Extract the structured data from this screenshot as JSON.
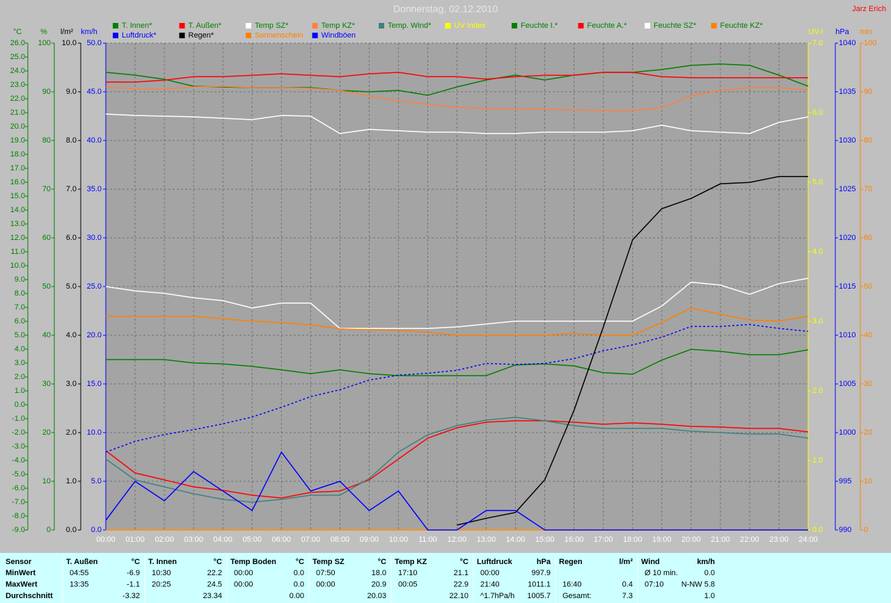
{
  "chart_data": {
    "type": "line",
    "title": "Donnerstag, 02.12.2010",
    "author": "Jarz Erich",
    "x": [
      0,
      1,
      2,
      3,
      4,
      5,
      6,
      7,
      8,
      9,
      10,
      11,
      12,
      13,
      14,
      15,
      16,
      17,
      18,
      19,
      20,
      21,
      22,
      23,
      24
    ],
    "xlim": [
      0,
      24
    ],
    "xticks": [
      {
        "value": 0,
        "label": "00:00"
      },
      {
        "value": 1,
        "label": "01:00"
      },
      {
        "value": 2,
        "label": "02:00"
      },
      {
        "value": 3,
        "label": "03:00"
      },
      {
        "value": 4,
        "label": "04:00"
      },
      {
        "value": 5,
        "label": "05:00"
      },
      {
        "value": 6,
        "label": "06:00"
      },
      {
        "value": 7,
        "label": "07:00"
      },
      {
        "value": 8,
        "label": "08:00"
      },
      {
        "value": 9,
        "label": "09:00"
      },
      {
        "value": 10,
        "label": "10:00"
      },
      {
        "value": 11,
        "label": "11:00"
      },
      {
        "value": 12,
        "label": "12:00"
      },
      {
        "value": 13,
        "label": "13:00"
      },
      {
        "value": 14,
        "label": "14:00"
      },
      {
        "value": 15,
        "label": "15:00"
      },
      {
        "value": 16,
        "label": "16:00"
      },
      {
        "value": 17,
        "label": "17:00"
      },
      {
        "value": 18,
        "label": "18:00"
      },
      {
        "value": 19,
        "label": "19:00"
      },
      {
        "value": 20,
        "label": "20:00"
      },
      {
        "value": 21,
        "label": "21:00"
      },
      {
        "value": 22,
        "label": "22:00"
      },
      {
        "value": 23,
        "label": "23:00"
      },
      {
        "value": 24,
        "label": "24:00"
      }
    ],
    "grid": true,
    "axes": [
      {
        "label": "°C",
        "color": "#008000",
        "ylim": [
          -9,
          26
        ],
        "yticks": [
          {
            "value": -9,
            "label": "-9.0"
          },
          {
            "value": -8,
            "label": "-8.0"
          },
          {
            "value": -7,
            "label": "-7.0"
          },
          {
            "value": -6,
            "label": "-6.0"
          },
          {
            "value": -5,
            "label": "-5.0"
          },
          {
            "value": -4,
            "label": "-4.0"
          },
          {
            "value": -3,
            "label": "-3.0"
          },
          {
            "value": -2,
            "label": "-2.0"
          },
          {
            "value": -1,
            "label": "-1.0"
          },
          {
            "value": 0,
            "label": "0.0"
          },
          {
            "value": 1,
            "label": "1.0"
          },
          {
            "value": 2,
            "label": "2.0"
          },
          {
            "value": 3,
            "label": "3.0"
          },
          {
            "value": 4,
            "label": "4.0"
          },
          {
            "value": 5,
            "label": "5.0"
          },
          {
            "value": 6,
            "label": "6.0"
          },
          {
            "value": 7,
            "label": "7.0"
          },
          {
            "value": 8,
            "label": "8.0"
          },
          {
            "value": 9,
            "label": "9.0"
          },
          {
            "value": 10,
            "label": "10.0"
          },
          {
            "value": 11,
            "label": "11.0"
          },
          {
            "value": 12,
            "label": "12.0"
          },
          {
            "value": 13,
            "label": "13.0"
          },
          {
            "value": 14,
            "label": "14.0"
          },
          {
            "value": 15,
            "label": "15.0"
          },
          {
            "value": 16,
            "label": "16.0"
          },
          {
            "value": 17,
            "label": "17.0"
          },
          {
            "value": 18,
            "label": "18.0"
          },
          {
            "value": 19,
            "label": "19.0"
          },
          {
            "value": 20,
            "label": "20.0"
          },
          {
            "value": 21,
            "label": "21.0"
          },
          {
            "value": 22,
            "label": "22.0"
          },
          {
            "value": 23,
            "label": "23.0"
          },
          {
            "value": 24,
            "label": "24.0"
          },
          {
            "value": 25,
            "label": "25.0"
          },
          {
            "value": 26,
            "label": "26.0"
          }
        ]
      },
      {
        "label": "%",
        "color": "#008000",
        "ylim": [
          0,
          100
        ],
        "yticks": [
          0,
          10,
          20,
          30,
          40,
          50,
          60,
          70,
          80,
          90,
          100
        ]
      },
      {
        "label": "l/m²",
        "color": "#000000",
        "ylim": [
          0,
          10
        ],
        "yticks": [
          {
            "value": 0,
            "label": "0.0"
          },
          {
            "value": 1,
            "label": "1.0"
          },
          {
            "value": 2,
            "label": "2.0"
          },
          {
            "value": 3,
            "label": "3.0"
          },
          {
            "value": 4,
            "label": "4.0"
          },
          {
            "value": 5,
            "label": "5.0"
          },
          {
            "value": 6,
            "label": "6.0"
          },
          {
            "value": 7,
            "label": "7.0"
          },
          {
            "value": 8,
            "label": "8.0"
          },
          {
            "value": 9,
            "label": "9.0"
          },
          {
            "value": 10,
            "label": "10.0"
          }
        ]
      },
      {
        "label": "km/h",
        "color": "#0000ff",
        "grid": true,
        "ylim": [
          0,
          50
        ],
        "yticks": [
          {
            "value": 0,
            "label": "0.0"
          },
          {
            "value": 5,
            "label": "5.0"
          },
          {
            "value": 10,
            "label": "10.0"
          },
          {
            "value": 15,
            "label": "15.0"
          },
          {
            "value": 20,
            "label": "20.0"
          },
          {
            "value": 25,
            "label": "25.0"
          },
          {
            "value": 30,
            "label": "30.0"
          },
          {
            "value": 35,
            "label": "35.0"
          },
          {
            "value": 40,
            "label": "40.0"
          },
          {
            "value": 45,
            "label": "45.0"
          },
          {
            "value": 50,
            "label": "50.0"
          }
        ]
      },
      {
        "label": "UV-I",
        "color": "#ffff00",
        "ylim": [
          0,
          7
        ],
        "yticks": [
          {
            "value": 0,
            "label": "0.0"
          },
          {
            "value": 1,
            "label": "1.0"
          },
          {
            "value": 2,
            "label": "2.0"
          },
          {
            "value": 3,
            "label": "3.0"
          },
          {
            "value": 4,
            "label": "4.0"
          },
          {
            "value": 5,
            "label": "5.0"
          },
          {
            "value": 6,
            "label": "6.0"
          },
          {
            "value": 7,
            "label": "7.0"
          }
        ]
      },
      {
        "label": "hPa",
        "color": "#0000ff",
        "ylim": [
          990,
          1040
        ],
        "yticks": [
          990,
          995,
          1000,
          1005,
          1010,
          1015,
          1020,
          1025,
          1030,
          1035,
          1040
        ]
      },
      {
        "label": "min",
        "color": "#ff8000",
        "ylim": [
          0,
          100
        ],
        "yticks": [
          0,
          10,
          20,
          30,
          40,
          50,
          60,
          70,
          80,
          90,
          100
        ]
      }
    ],
    "series": [
      {
        "name": "T. Innen*",
        "color": "#008000",
        "axis": 0,
        "values": [
          23.9,
          23.7,
          23.4,
          22.9,
          22.85,
          22.8,
          22.8,
          22.8,
          22.6,
          22.5,
          22.6,
          22.25,
          22.85,
          23.35,
          23.7,
          23.35,
          23.7,
          23.9,
          23.9,
          24.1,
          24.4,
          24.5,
          24.4,
          23.7,
          22.9
        ]
      },
      {
        "name": "T. Außen*",
        "color": "#ff0000",
        "axis": 0,
        "values": [
          -3.3,
          -4.9,
          -5.4,
          -5.9,
          -6.15,
          -6.5,
          -6.7,
          -6.3,
          -6.2,
          -5.4,
          -3.9,
          -2.4,
          -1.65,
          -1.25,
          -1.15,
          -1.15,
          -1.25,
          -1.4,
          -1.3,
          -1.4,
          -1.55,
          -1.6,
          -1.7,
          -1.7,
          -1.95
        ]
      },
      {
        "name": "Temp SZ*",
        "color": "#ffffff",
        "axis": 0,
        "values": [
          20.9,
          20.8,
          20.75,
          20.7,
          20.6,
          20.5,
          20.8,
          20.75,
          19.5,
          19.8,
          19.7,
          19.6,
          19.6,
          19.5,
          19.5,
          19.6,
          19.6,
          19.6,
          19.7,
          20.1,
          19.7,
          19.6,
          19.5,
          20.3,
          20.7
        ]
      },
      {
        "name": "Temp KZ*",
        "color": "#ff8040",
        "axis": 0,
        "values": [
          22.85,
          22.7,
          22.7,
          22.85,
          22.9,
          22.8,
          22.8,
          22.75,
          22.6,
          22.2,
          21.85,
          21.6,
          21.4,
          21.3,
          21.3,
          21.25,
          21.2,
          21.15,
          21.15,
          21.35,
          22.2,
          22.6,
          22.8,
          22.8,
          22.65
        ]
      },
      {
        "name": "Temp. Wind*",
        "color": "#408080",
        "axis": 0,
        "values": [
          -3.9,
          -5.4,
          -5.9,
          -6.4,
          -6.8,
          -7.0,
          -6.8,
          -6.5,
          -6.5,
          -5.3,
          -3.4,
          -2.15,
          -1.5,
          -1.1,
          -0.9,
          -1.15,
          -1.5,
          -1.7,
          -1.7,
          -1.7,
          -1.9,
          -2.0,
          -2.1,
          -2.1,
          -2.4
        ]
      },
      {
        "name": "UV Index",
        "color": "#ffff00",
        "axis": 4,
        "values": [
          0,
          0,
          0,
          0,
          0,
          0,
          0,
          0,
          0,
          0,
          0,
          0,
          0,
          0,
          0,
          0,
          0,
          0,
          0,
          0,
          0,
          0,
          0,
          0,
          0
        ]
      },
      {
        "name": "Feuchte I.*",
        "color": "#008000",
        "axis": 1,
        "values": [
          35.0,
          35.0,
          35.0,
          34.3,
          34.1,
          33.6,
          32.9,
          32.1,
          32.9,
          32.1,
          31.7,
          31.7,
          31.7,
          31.7,
          33.9,
          34.1,
          33.7,
          32.3,
          32.0,
          34.9,
          37.1,
          36.7,
          36.0,
          36.0,
          37.0
        ]
      },
      {
        "name": "Feuchte A.*",
        "color": "#ff0000",
        "axis": 1,
        "values": [
          92.0,
          92.0,
          92.4,
          93.1,
          93.1,
          93.4,
          93.7,
          93.4,
          93.1,
          93.7,
          94.0,
          93.1,
          93.1,
          92.6,
          93.1,
          93.4,
          93.4,
          94.0,
          94.0,
          93.1,
          92.9,
          92.9,
          92.9,
          92.9,
          92.9
        ]
      },
      {
        "name": "Feuchte SZ*",
        "color": "#ffffff",
        "axis": 1,
        "values": [
          50.0,
          49.1,
          48.6,
          47.7,
          47.1,
          45.6,
          46.6,
          46.6,
          41.4,
          41.4,
          41.4,
          41.4,
          41.7,
          42.3,
          42.9,
          42.9,
          42.9,
          42.9,
          42.9,
          46.0,
          50.9,
          50.3,
          48.4,
          50.6,
          51.7
        ]
      },
      {
        "name": "Feuchte KZ*",
        "color": "#ff8000",
        "axis": 1,
        "values": [
          43.9,
          43.9,
          43.9,
          43.9,
          43.4,
          42.9,
          42.6,
          42.1,
          41.3,
          41.1,
          41.0,
          40.6,
          40.0,
          40.0,
          40.0,
          40.0,
          40.4,
          40.0,
          40.0,
          42.6,
          45.6,
          44.3,
          43.1,
          42.9,
          43.9
        ]
      },
      {
        "name": "Luftdruck*",
        "color": "#0000ff",
        "axis": 5,
        "dashed": true,
        "values": [
          998.0,
          999.1,
          999.8,
          1000.3,
          1000.9,
          1001.6,
          1002.6,
          1003.7,
          1004.4,
          1005.4,
          1005.9,
          1006.1,
          1006.4,
          1007.1,
          1007.0,
          1007.1,
          1007.6,
          1008.4,
          1009.0,
          1009.8,
          1010.9,
          1010.9,
          1011.1,
          1010.7,
          1010.4
        ]
      },
      {
        "name": "Regen*",
        "color": "#000000",
        "axis": 2,
        "values": [
          null,
          null,
          null,
          null,
          null,
          null,
          null,
          null,
          null,
          null,
          null,
          null,
          0.1,
          0.24,
          0.36,
          1.03,
          2.46,
          4.17,
          5.96,
          6.6,
          6.81,
          7.11,
          7.14,
          7.26,
          7.26
        ]
      },
      {
        "name": "Sonnenschein",
        "color": "#ff8000",
        "axis": 6,
        "values": [
          0,
          0,
          0,
          0,
          0,
          0,
          0,
          0,
          0,
          0,
          0,
          0,
          0,
          0,
          0,
          0,
          0,
          0,
          0,
          0,
          0,
          0,
          0,
          0,
          0
        ]
      },
      {
        "name": "Windböen",
        "color": "#0000ff",
        "axis": 3,
        "values": [
          1,
          5,
          3,
          6,
          4,
          2,
          8,
          4,
          5,
          2,
          4,
          0,
          0,
          2,
          2,
          0,
          0,
          0,
          0,
          0,
          0,
          0,
          0,
          0,
          0
        ]
      }
    ]
  },
  "stats": {
    "row_labels": [
      "Sensor",
      "MinWert",
      "MaxWert",
      "Durchschnitt"
    ],
    "columns": [
      {
        "name": "T. Außen",
        "unit": "°C",
        "rows": [
          {
            "time": "04:55",
            "value": "-6.9"
          },
          {
            "time": "13:35",
            "value": "-1.1"
          },
          {
            "value": "-3.32"
          }
        ]
      },
      {
        "name": "T. Innen",
        "unit": "°C",
        "rows": [
          {
            "time": "10:30",
            "value": "22.2"
          },
          {
            "time": "20:25",
            "value": "24.5"
          },
          {
            "value": "23.34"
          }
        ]
      },
      {
        "name": "Temp Boden",
        "unit": "°C",
        "rows": [
          {
            "time": "00:00",
            "value": "0.0"
          },
          {
            "time": "00:00",
            "value": "0.0"
          },
          {
            "value": "0.00"
          }
        ]
      },
      {
        "name": "Temp SZ",
        "unit": "°C",
        "rows": [
          {
            "time": "07:50",
            "value": "18.0"
          },
          {
            "time": "00:00",
            "value": "20.9"
          },
          {
            "value": "20.03"
          }
        ]
      },
      {
        "name": "Temp KZ",
        "unit": "°C",
        "rows": [
          {
            "time": "17:10",
            "value": "21.1"
          },
          {
            "time": "00:05",
            "value": "22.9"
          },
          {
            "value": "22.10"
          }
        ]
      },
      {
        "name": "Luftdruck",
        "unit": "hPa",
        "rows": [
          {
            "time": "00:00",
            "value": "997.9"
          },
          {
            "time": "21:40",
            "value": "1011.1"
          },
          {
            "time": "^1.7hPa/h",
            "value": "1005.7"
          }
        ]
      },
      {
        "name": "Regen",
        "unit": "l/m²",
        "rows": [
          null,
          {
            "time": "16:40",
            "value": "0.4"
          },
          {
            "time": "Gesamt:",
            "value": "7.3"
          }
        ]
      },
      {
        "name": "Wind",
        "unit": "km/h",
        "rows": [
          {
            "time": "Ø 10 min.",
            "value": "0.0"
          },
          {
            "time": "07:10",
            "value": "N-NW 5.8"
          },
          {
            "value": "1.0"
          }
        ]
      }
    ]
  }
}
